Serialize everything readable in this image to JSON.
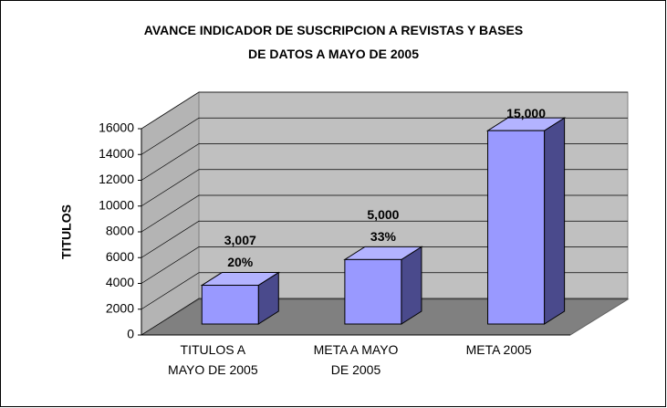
{
  "chart_data": {
    "type": "bar3d",
    "title": "AVANCE INDICADOR DE SUSCRIPCION A REVISTAS Y BASES\nDE DATOS A MAYO DE 2005",
    "y_label": "TITULOS",
    "categories": [
      "TITULOS A\nMAYO DE 2005",
      "META A MAYO\nDE 2005",
      "META 2005"
    ],
    "values": [
      3007,
      5000,
      15000
    ],
    "value_labels": [
      "3,007",
      "5,000",
      "15,000"
    ],
    "percent_labels": [
      "20%",
      "33%",
      null
    ],
    "color": "#9999ff",
    "ylim": [
      0,
      16000
    ],
    "yticks": [
      0,
      2000,
      4000,
      6000,
      8000,
      10000,
      12000,
      14000,
      16000
    ],
    "grid": true
  }
}
